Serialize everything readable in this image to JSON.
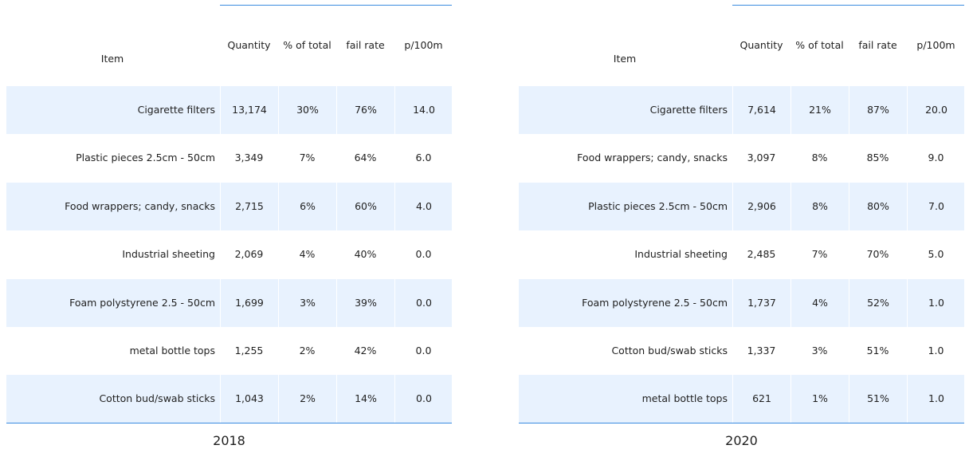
{
  "columns": [
    "Item",
    "Quantity",
    "% of total",
    "fail rate",
    "p/100m"
  ],
  "tables": [
    {
      "year": "2018",
      "rows": [
        [
          "Cigarette filters",
          "13,174",
          "30%",
          "76%",
          "14.0"
        ],
        [
          "Plastic pieces 2.5cm - 50cm",
          "3,349",
          "7%",
          "64%",
          "6.0"
        ],
        [
          "Food wrappers; candy, snacks",
          "2,715",
          "6%",
          "60%",
          "4.0"
        ],
        [
          "Industrial sheeting",
          "2,069",
          "4%",
          "40%",
          "0.0"
        ],
        [
          "Foam polystyrene  2.5 - 50cm",
          "1,699",
          "3%",
          "39%",
          "0.0"
        ],
        [
          "metal bottle tops",
          "1,255",
          "2%",
          "42%",
          "0.0"
        ],
        [
          "Cotton bud/swab sticks",
          "1,043",
          "2%",
          "14%",
          "0.0"
        ]
      ]
    },
    {
      "year": "2020",
      "rows": [
        [
          "Cigarette filters",
          "7,614",
          "21%",
          "87%",
          "20.0"
        ],
        [
          "Food wrappers; candy, snacks",
          "3,097",
          "8%",
          "85%",
          "9.0"
        ],
        [
          "Plastic pieces 2.5cm - 50cm",
          "2,906",
          "8%",
          "80%",
          "7.0"
        ],
        [
          "Industrial sheeting",
          "2,485",
          "7%",
          "70%",
          "5.0"
        ],
        [
          "Foam polystyrene  2.5 - 50cm",
          "1,737",
          "4%",
          "52%",
          "1.0"
        ],
        [
          "Cotton bud/swab sticks",
          "1,337",
          "3%",
          "51%",
          "1.0"
        ],
        [
          "metal bottle tops",
          "621",
          "1%",
          "51%",
          "1.0"
        ]
      ]
    }
  ],
  "colors": {
    "rule": "#3a8be0",
    "row_shade": "#e8f2fe",
    "text": "#1f1f1f"
  }
}
